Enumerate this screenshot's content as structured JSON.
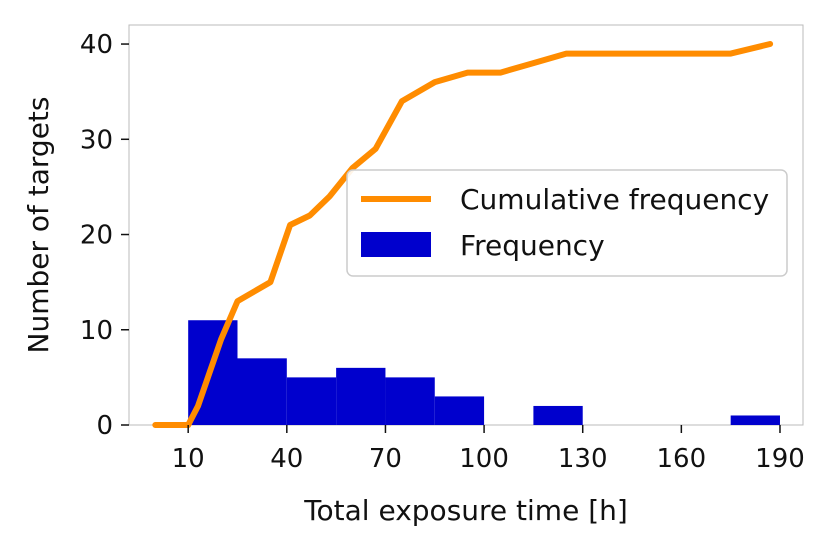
{
  "chart_data": {
    "type": "bar",
    "xlabel": "Total exposure time [h]",
    "ylabel": "Number of targets",
    "xlim": [
      -8,
      197
    ],
    "ylim": [
      0,
      42
    ],
    "xticks": [
      10,
      40,
      70,
      100,
      130,
      160,
      190
    ],
    "yticks": [
      0,
      10,
      20,
      30,
      40
    ],
    "legend_position": "center-right",
    "series": [
      {
        "name": "Cumulative frequency",
        "type": "line",
        "color": "#ff8c00",
        "x": [
          0,
          10,
          13,
          16,
          20,
          25,
          30,
          35,
          41,
          47,
          53,
          60,
          67,
          75,
          85,
          95,
          105,
          115,
          125,
          135,
          145,
          155,
          165,
          175,
          187
        ],
        "y": [
          0,
          0,
          2,
          5,
          9,
          13,
          14,
          15,
          21,
          22,
          24,
          27,
          29,
          34,
          36,
          37,
          37,
          38,
          39,
          39,
          39,
          39,
          39,
          39,
          40
        ]
      },
      {
        "name": "Frequency",
        "type": "histogram",
        "color": "#0000cd",
        "bin_edges": [
          10,
          25,
          40,
          55,
          70,
          85,
          100,
          115,
          130,
          145,
          160,
          175,
          190
        ],
        "values": [
          11,
          7,
          5,
          6,
          5,
          3,
          0,
          2,
          0,
          0,
          0,
          1
        ]
      }
    ]
  }
}
